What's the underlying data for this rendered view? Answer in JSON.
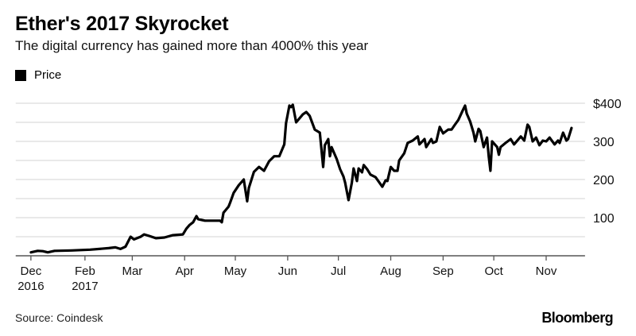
{
  "header": {
    "title": "Ether's 2017 Skyrocket",
    "subtitle": "The digital currency has gained more than 4000% this year"
  },
  "legend": {
    "label": "Price",
    "color": "#000000"
  },
  "footer": {
    "source": "Source: Coindesk",
    "brand": "Bloomberg"
  },
  "chart_data": {
    "type": "line",
    "title": "Ether's 2017 Skyrocket",
    "subtitle": "The digital currency has gained more than 4000% this year",
    "xlabel": "",
    "ylabel": "",
    "ylim": [
      0,
      400
    ],
    "xlim": [
      "2016-12-22",
      "2017-11-24"
    ],
    "grid": true,
    "legend_position": "top-left",
    "y_axis_side": "right",
    "y_ticks": [
      {
        "value": 400,
        "label": "$400"
      },
      {
        "value": 300,
        "label": "300"
      },
      {
        "value": 200,
        "label": "200"
      },
      {
        "value": 100,
        "label": "100"
      }
    ],
    "y_gridlines": [
      50,
      100,
      150,
      200,
      250,
      300,
      350,
      400
    ],
    "x_ticks": [
      {
        "date": "2016-12-31",
        "label": "Dec",
        "label2": "2016"
      },
      {
        "date": "2017-02-01",
        "label": "Feb",
        "label2": "2017"
      },
      {
        "date": "2017-03-01",
        "label": "Mar",
        "label2": ""
      },
      {
        "date": "2017-04-01",
        "label": "Apr",
        "label2": ""
      },
      {
        "date": "2017-05-01",
        "label": "May",
        "label2": ""
      },
      {
        "date": "2017-06-01",
        "label": "Jun",
        "label2": ""
      },
      {
        "date": "2017-07-01",
        "label": "Jul",
        "label2": ""
      },
      {
        "date": "2017-08-01",
        "label": "Aug",
        "label2": ""
      },
      {
        "date": "2017-09-01",
        "label": "Sep",
        "label2": ""
      },
      {
        "date": "2017-10-01",
        "label": "Oct",
        "label2": ""
      },
      {
        "date": "2017-11-01",
        "label": "Nov",
        "label2": ""
      }
    ],
    "series": [
      {
        "name": "Price",
        "color": "#000000",
        "points": [
          [
            "2016-12-31",
            9
          ],
          [
            "2017-01-04",
            13
          ],
          [
            "2017-01-07",
            12
          ],
          [
            "2017-01-10",
            9
          ],
          [
            "2017-01-14",
            13
          ],
          [
            "2017-01-24",
            14
          ],
          [
            "2017-02-04",
            16
          ],
          [
            "2017-02-15",
            20
          ],
          [
            "2017-02-19",
            22
          ],
          [
            "2017-02-22",
            18
          ],
          [
            "2017-02-25",
            24
          ],
          [
            "2017-02-28",
            50
          ],
          [
            "2017-03-02",
            43
          ],
          [
            "2017-03-06",
            50
          ],
          [
            "2017-03-08",
            56
          ],
          [
            "2017-03-11",
            52
          ],
          [
            "2017-03-15",
            46
          ],
          [
            "2017-03-20",
            48
          ],
          [
            "2017-03-25",
            54
          ],
          [
            "2017-03-31",
            56
          ],
          [
            "2017-04-02",
            71
          ],
          [
            "2017-04-04",
            81
          ],
          [
            "2017-04-06",
            88
          ],
          [
            "2017-04-08",
            104
          ],
          [
            "2017-04-09",
            96
          ],
          [
            "2017-04-13",
            92
          ],
          [
            "2017-04-17",
            92
          ],
          [
            "2017-04-22",
            92
          ],
          [
            "2017-04-23",
            88
          ],
          [
            "2017-04-24",
            113
          ],
          [
            "2017-04-27",
            129
          ],
          [
            "2017-04-28",
            140
          ],
          [
            "2017-04-30",
            165
          ],
          [
            "2017-05-03",
            185
          ],
          [
            "2017-05-06",
            200
          ],
          [
            "2017-05-08",
            143
          ],
          [
            "2017-05-09",
            178
          ],
          [
            "2017-05-12",
            220
          ],
          [
            "2017-05-15",
            233
          ],
          [
            "2017-05-18",
            223
          ],
          [
            "2017-05-21",
            248
          ],
          [
            "2017-05-24",
            261
          ],
          [
            "2017-05-27",
            261
          ],
          [
            "2017-05-30",
            292
          ],
          [
            "2017-05-31",
            348
          ],
          [
            "2017-06-02",
            394
          ],
          [
            "2017-06-03",
            390
          ],
          [
            "2017-06-04",
            396
          ],
          [
            "2017-06-06",
            350
          ],
          [
            "2017-06-10",
            371
          ],
          [
            "2017-06-12",
            377
          ],
          [
            "2017-06-14",
            367
          ],
          [
            "2017-06-17",
            331
          ],
          [
            "2017-06-20",
            323
          ],
          [
            "2017-06-22",
            233
          ],
          [
            "2017-06-23",
            290
          ],
          [
            "2017-06-25",
            306
          ],
          [
            "2017-06-26",
            261
          ],
          [
            "2017-06-27",
            285
          ],
          [
            "2017-06-30",
            254
          ],
          [
            "2017-07-02",
            227
          ],
          [
            "2017-07-04",
            208
          ],
          [
            "2017-07-05",
            192
          ],
          [
            "2017-07-07",
            146
          ],
          [
            "2017-07-09",
            192
          ],
          [
            "2017-07-10",
            229
          ],
          [
            "2017-07-12",
            196
          ],
          [
            "2017-07-13",
            229
          ],
          [
            "2017-07-15",
            219
          ],
          [
            "2017-07-16",
            238
          ],
          [
            "2017-07-18",
            227
          ],
          [
            "2017-07-20",
            213
          ],
          [
            "2017-07-23",
            206
          ],
          [
            "2017-07-27",
            181
          ],
          [
            "2017-07-29",
            198
          ],
          [
            "2017-07-30",
            196
          ],
          [
            "2017-08-01",
            233
          ],
          [
            "2017-08-03",
            223
          ],
          [
            "2017-08-05",
            223
          ],
          [
            "2017-08-06",
            250
          ],
          [
            "2017-08-09",
            269
          ],
          [
            "2017-08-11",
            296
          ],
          [
            "2017-08-14",
            302
          ],
          [
            "2017-08-17",
            313
          ],
          [
            "2017-08-18",
            292
          ],
          [
            "2017-08-21",
            306
          ],
          [
            "2017-08-22",
            285
          ],
          [
            "2017-08-25",
            306
          ],
          [
            "2017-08-26",
            296
          ],
          [
            "2017-08-28",
            300
          ],
          [
            "2017-08-30",
            338
          ],
          [
            "2017-09-01",
            321
          ],
          [
            "2017-09-04",
            331
          ],
          [
            "2017-09-06",
            331
          ],
          [
            "2017-09-08",
            344
          ],
          [
            "2017-09-10",
            356
          ],
          [
            "2017-09-13",
            385
          ],
          [
            "2017-09-14",
            394
          ],
          [
            "2017-09-15",
            373
          ],
          [
            "2017-09-17",
            352
          ],
          [
            "2017-09-19",
            323
          ],
          [
            "2017-09-20",
            300
          ],
          [
            "2017-09-22",
            333
          ],
          [
            "2017-09-23",
            327
          ],
          [
            "2017-09-25",
            285
          ],
          [
            "2017-09-27",
            310
          ],
          [
            "2017-09-28",
            260
          ],
          [
            "2017-09-29",
            223
          ],
          [
            "2017-09-30",
            300
          ],
          [
            "2017-10-03",
            285
          ],
          [
            "2017-10-04",
            265
          ],
          [
            "2017-10-05",
            285
          ],
          [
            "2017-10-08",
            296
          ],
          [
            "2017-10-11",
            306
          ],
          [
            "2017-10-13",
            292
          ],
          [
            "2017-10-17",
            313
          ],
          [
            "2017-10-19",
            302
          ],
          [
            "2017-10-21",
            344
          ],
          [
            "2017-10-22",
            338
          ],
          [
            "2017-10-24",
            300
          ],
          [
            "2017-10-26",
            310
          ],
          [
            "2017-10-28",
            290
          ],
          [
            "2017-10-30",
            302
          ],
          [
            "2017-11-01",
            300
          ],
          [
            "2017-11-03",
            310
          ],
          [
            "2017-11-06",
            292
          ],
          [
            "2017-11-08",
            302
          ],
          [
            "2017-11-09",
            296
          ],
          [
            "2017-11-11",
            323
          ],
          [
            "2017-11-13",
            302
          ],
          [
            "2017-11-14",
            306
          ],
          [
            "2017-11-16",
            335
          ]
        ]
      }
    ]
  }
}
